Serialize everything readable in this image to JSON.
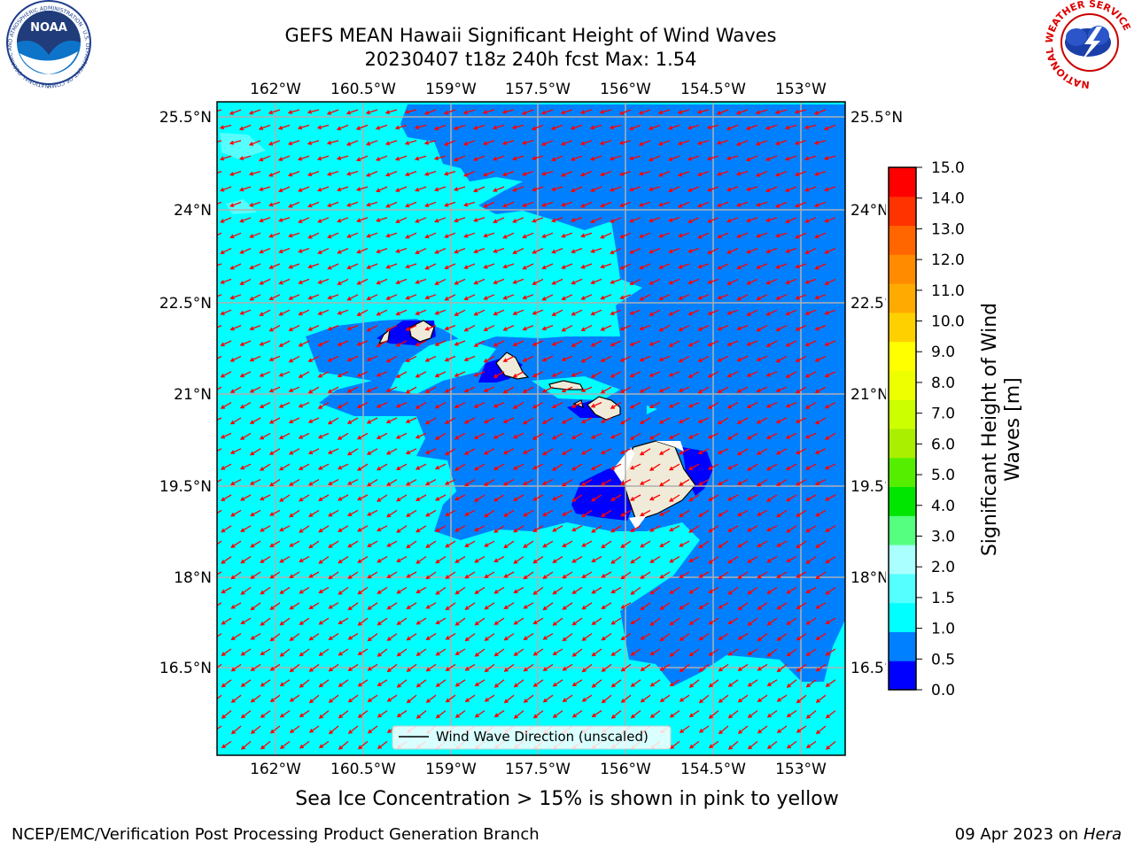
{
  "title": {
    "line1": "GEFS MEAN Hawaii Significant Height of Wind Waves",
    "line2": "20230407 t18z 240h fcst   Max: 1.54"
  },
  "map": {
    "lon_ticks": [
      "162°W",
      "160.5°W",
      "159°W",
      "157.5°W",
      "156°W",
      "154.5°W",
      "153°W"
    ],
    "lat_ticks": [
      "25.5°N",
      "24°N",
      "22.5°N",
      "21°N",
      "19.5°N",
      "18°N",
      "16.5°N"
    ],
    "legend": "Wind Wave Direction (unscaled)",
    "colors": {
      "ocean_1_1_5": "#00ffff",
      "ocean_0_5_1": "#0080ff",
      "ocean_0_0_5": "#0000ff",
      "land": "#efebd8",
      "arrow": "#ff0000",
      "grid": "#b0b0b0"
    }
  },
  "colorbar": {
    "label": "Significant Height of Wind Waves [m]",
    "label_line1": "Significant Height of Wind",
    "label_line2": "Waves [m]",
    "ticks": [
      "15.0",
      "14.0",
      "13.0",
      "12.0",
      "11.0",
      "10.0",
      "9.0",
      "8.0",
      "7.0",
      "6.0",
      "5.0",
      "4.0",
      "3.0",
      "2.0",
      "1.5",
      "1.0",
      "0.5",
      "0.0"
    ],
    "colors": [
      "#0000ff",
      "#0080ff",
      "#00ffff",
      "#55ffff",
      "#aaffff",
      "#55ff7f",
      "#00e600",
      "#55ee00",
      "#aaee00",
      "#ccff00",
      "#eeff00",
      "#ffff00",
      "#ffd000",
      "#ffaa00",
      "#ff8c00",
      "#ff6600",
      "#ff3300",
      "#ff0000"
    ]
  },
  "note": "Sea Ice Concentration > 15% is shown in pink to yellow",
  "footer": {
    "left": "NCEP/EMC/Verification Post Processing Product Generation Branch",
    "right_date": "09 Apr 2023 on ",
    "right_host": "Hera"
  },
  "logos": {
    "noaa": "NOAA",
    "noaa_ring": "NATIONAL OCEANIC AND ATMOSPHERIC ADMINISTRATION · U.S. DEPARTMENT OF COMMERCE",
    "nws_ring": "NATIONAL WEATHER SERVICE"
  }
}
